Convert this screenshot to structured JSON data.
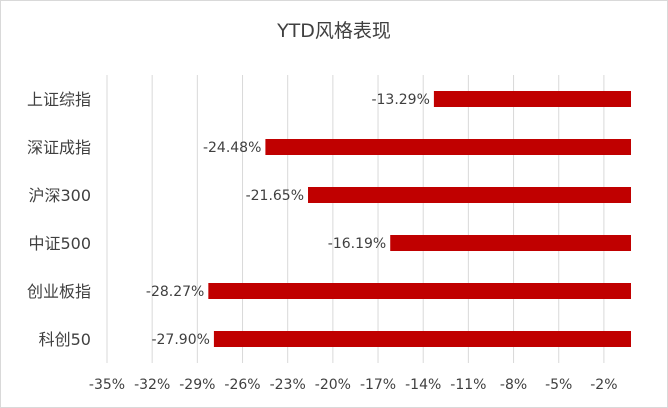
{
  "chart_data": {
    "type": "bar",
    "orientation": "horizontal",
    "title": "YTD风格表现",
    "categories": [
      "上证综指",
      "深证成指",
      "沪深300",
      "中证500",
      "创业板指",
      "科创50"
    ],
    "values": [
      -13.29,
      -24.48,
      -21.65,
      -16.19,
      -28.27,
      -27.9
    ],
    "data_labels": [
      "-13.29%",
      "-24.48%",
      "-21.65%",
      "-16.19%",
      "-28.27%",
      "-27.90%"
    ],
    "xlim": [
      -35,
      -0.2
    ],
    "x_ticks": [
      -35,
      -32,
      -29,
      -26,
      -23,
      -20,
      -17,
      -14,
      -11,
      -8,
      -5,
      -2
    ],
    "x_tick_labels": [
      "-35%",
      "-32%",
      "-29%",
      "-26%",
      "-23%",
      "-20%",
      "-17%",
      "-14%",
      "-11%",
      "-8%",
      "-5%",
      "-2%"
    ],
    "bar_color": "#c00000",
    "grid": true,
    "legend": "none"
  }
}
